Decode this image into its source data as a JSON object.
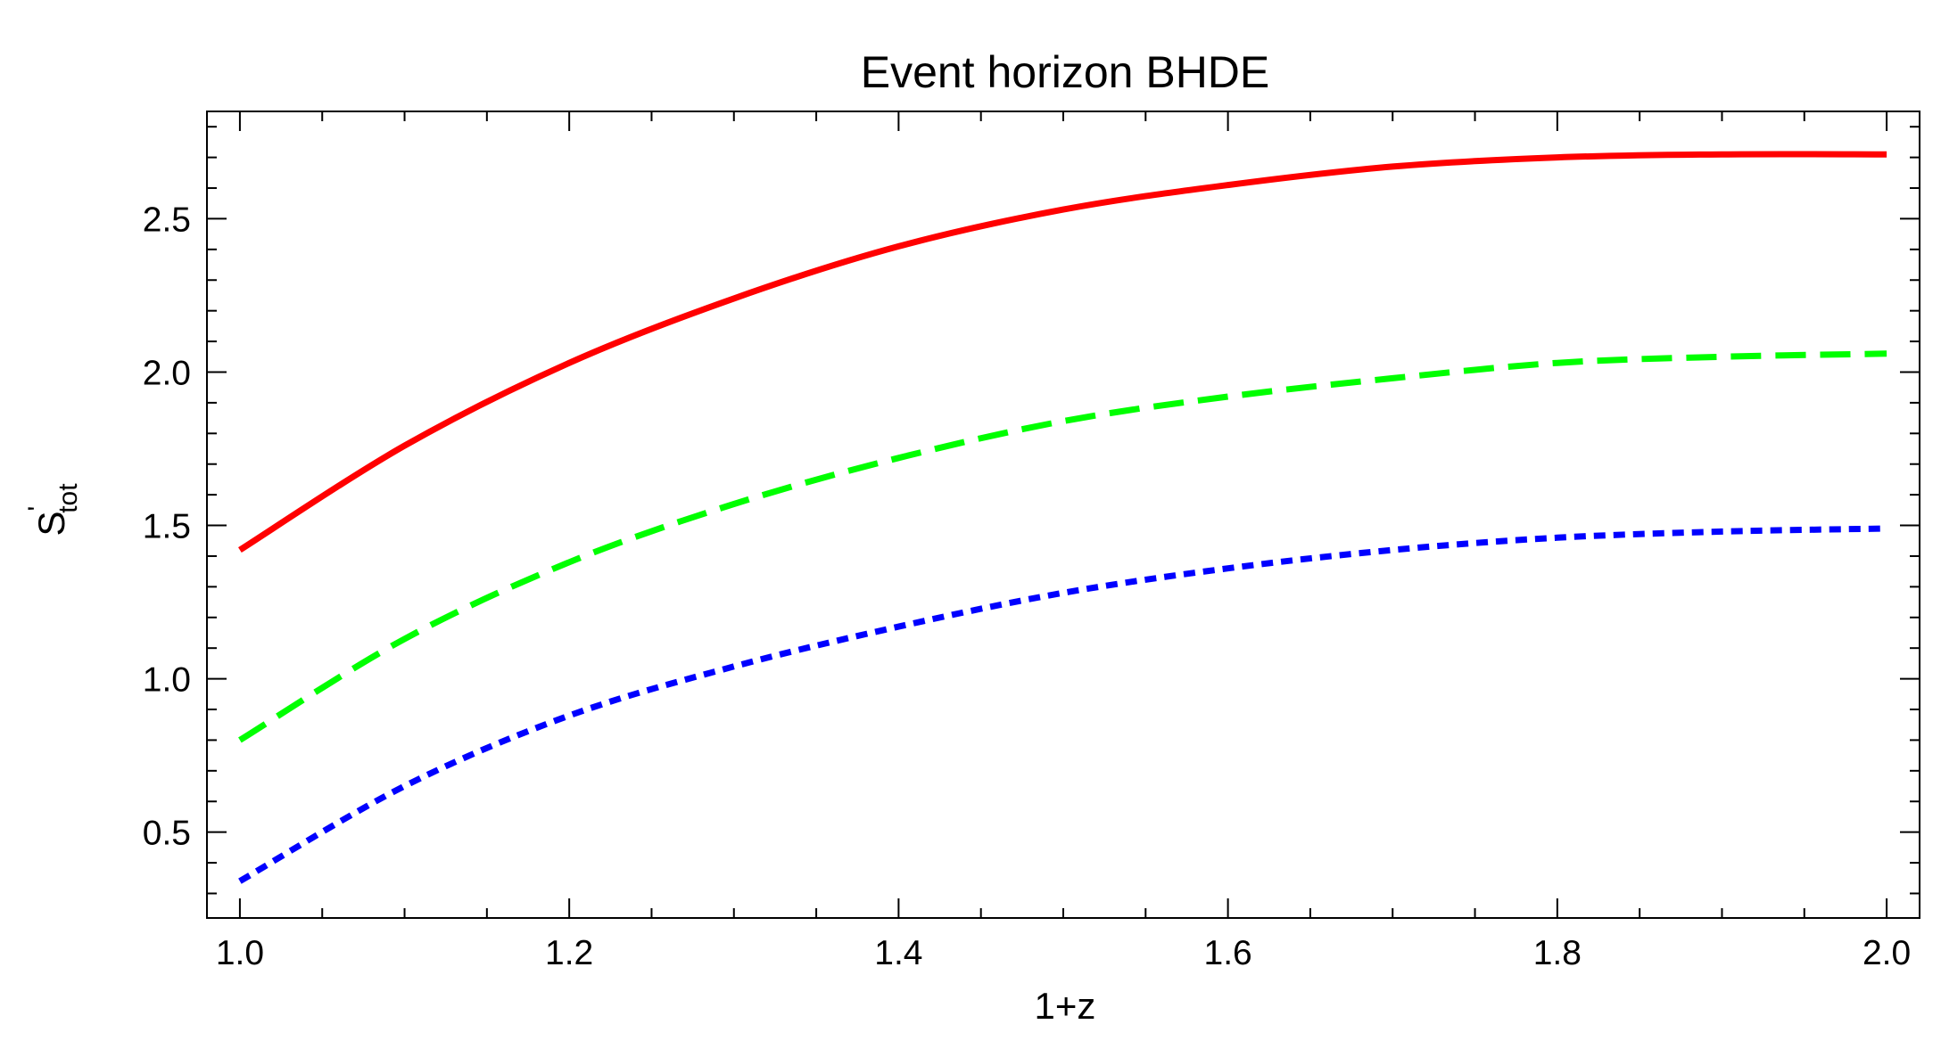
{
  "chart_data": {
    "type": "line",
    "title": "Event horizon BHDE",
    "xlabel": "1+z",
    "ylabel": {
      "symbol": "S",
      "prime": "'",
      "subscript": "tot"
    },
    "xlim": [
      0.98,
      2.02
    ],
    "ylim": [
      0.22,
      2.85
    ],
    "x_ticks": [
      1.0,
      1.2,
      1.4,
      1.6,
      1.8,
      2.0
    ],
    "x_tick_labels": [
      "1.0",
      "1.2",
      "1.4",
      "1.6",
      "1.8",
      "2.0"
    ],
    "y_ticks": [
      0.5,
      1.0,
      1.5,
      2.0,
      2.5
    ],
    "y_tick_labels": [
      "0.5",
      "1.0",
      "1.5",
      "2.0",
      "2.5"
    ],
    "grid": false,
    "legend": "none",
    "x": [
      1.0,
      1.1,
      1.2,
      1.3,
      1.4,
      1.5,
      1.6,
      1.7,
      1.8,
      1.9,
      2.0
    ],
    "series": [
      {
        "values": [
          1.42,
          1.76,
          2.03,
          2.24,
          2.41,
          2.53,
          2.61,
          2.67,
          2.7,
          2.71,
          2.71
        ],
        "color": "#ff0000",
        "style": "solid"
      },
      {
        "values": [
          0.8,
          1.13,
          1.38,
          1.57,
          1.72,
          1.84,
          1.92,
          1.98,
          2.03,
          2.05,
          2.06
        ],
        "color": "#00ff00",
        "style": "dashed"
      },
      {
        "values": [
          0.34,
          0.65,
          0.88,
          1.04,
          1.17,
          1.28,
          1.36,
          1.42,
          1.46,
          1.48,
          1.49
        ],
        "color": "#0000ff",
        "style": "dotted"
      }
    ]
  }
}
